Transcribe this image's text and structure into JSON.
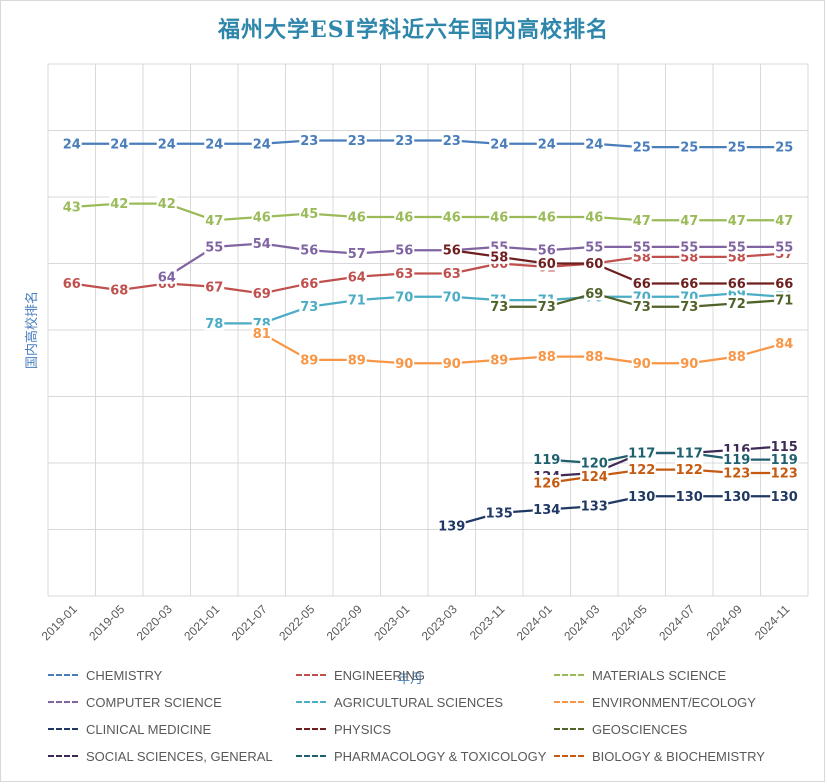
{
  "title": "福州大学ESI学科近六年国内高校排名",
  "chart_data": {
    "type": "line",
    "title": "福州大学ESI学科近六年国内高校排名",
    "xlabel": "年月",
    "ylabel": "国内高校排名",
    "ylim": [
      0,
      160
    ],
    "y_inverted": true,
    "grid": true,
    "legend_position": "bottom",
    "categories": [
      "2019-01",
      "2019-05",
      "2020-03",
      "2021-01",
      "2021-07",
      "2022-05",
      "2022-09",
      "2023-01",
      "2023-03",
      "2023-11",
      "2024-01",
      "2024-03",
      "2024-05",
      "2024-07",
      "2024-09",
      "2024-11"
    ],
    "series": [
      {
        "name": "CHEMISTRY",
        "color": "#4a7ebb",
        "values": [
          24,
          24,
          24,
          24,
          24,
          23,
          23,
          23,
          23,
          24,
          24,
          24,
          25,
          25,
          25,
          25
        ]
      },
      {
        "name": "ENGINEERING",
        "color": "#c0504d",
        "values": [
          66,
          68,
          66,
          67,
          69,
          66,
          64,
          63,
          63,
          60,
          61,
          60,
          58,
          58,
          58,
          57
        ]
      },
      {
        "name": "MATERIALS SCIENCE",
        "color": "#9bbb59",
        "values": [
          43,
          42,
          42,
          47,
          46,
          45,
          46,
          46,
          46,
          46,
          46,
          46,
          47,
          47,
          47,
          47
        ]
      },
      {
        "name": "COMPUTER SCIENCE",
        "color": "#8064a2",
        "values": [
          null,
          null,
          64,
          55,
          54,
          56,
          57,
          56,
          56,
          55,
          56,
          55,
          55,
          55,
          55,
          55
        ]
      },
      {
        "name": "AGRICULTURAL SCIENCES",
        "color": "#4bacc6",
        "values": [
          null,
          null,
          null,
          78,
          78,
          73,
          71,
          70,
          70,
          71,
          71,
          70,
          70,
          70,
          69,
          70
        ]
      },
      {
        "name": "ENVIRONMENT/ECOLOGY",
        "color": "#f79646",
        "values": [
          null,
          null,
          null,
          null,
          81,
          89,
          89,
          90,
          90,
          89,
          88,
          88,
          90,
          90,
          88,
          84
        ]
      },
      {
        "name": "CLINICAL MEDICINE",
        "color": "#1f3864",
        "values": [
          null,
          null,
          null,
          null,
          null,
          null,
          null,
          null,
          139,
          135,
          134,
          133,
          130,
          130,
          130,
          130
        ]
      },
      {
        "name": "PHYSICS",
        "color": "#6e1e1e",
        "values": [
          null,
          null,
          null,
          null,
          null,
          null,
          null,
          null,
          56,
          58,
          60,
          60,
          66,
          66,
          66,
          66
        ]
      },
      {
        "name": "GEOSCIENCES",
        "color": "#4f6228",
        "values": [
          null,
          null,
          null,
          null,
          null,
          null,
          null,
          null,
          null,
          73,
          73,
          69,
          73,
          73,
          72,
          71
        ]
      },
      {
        "name": "SOCIAL SCIENCES, GENERAL",
        "color": "#3f2a56",
        "values": [
          null,
          null,
          null,
          null,
          null,
          null,
          null,
          null,
          null,
          null,
          124,
          123,
          117,
          117,
          116,
          115
        ]
      },
      {
        "name": "PHARMACOLOGY & TOXICOLOGY",
        "color": "#1f5f6e",
        "values": [
          null,
          null,
          null,
          null,
          null,
          null,
          null,
          null,
          null,
          null,
          119,
          120,
          117,
          117,
          119,
          119
        ]
      },
      {
        "name": "BIOLOGY & BIOCHEMISTRY",
        "color": "#c55a11",
        "values": [
          null,
          null,
          null,
          null,
          null,
          null,
          null,
          null,
          null,
          null,
          126,
          124,
          122,
          122,
          123,
          123
        ]
      }
    ]
  }
}
